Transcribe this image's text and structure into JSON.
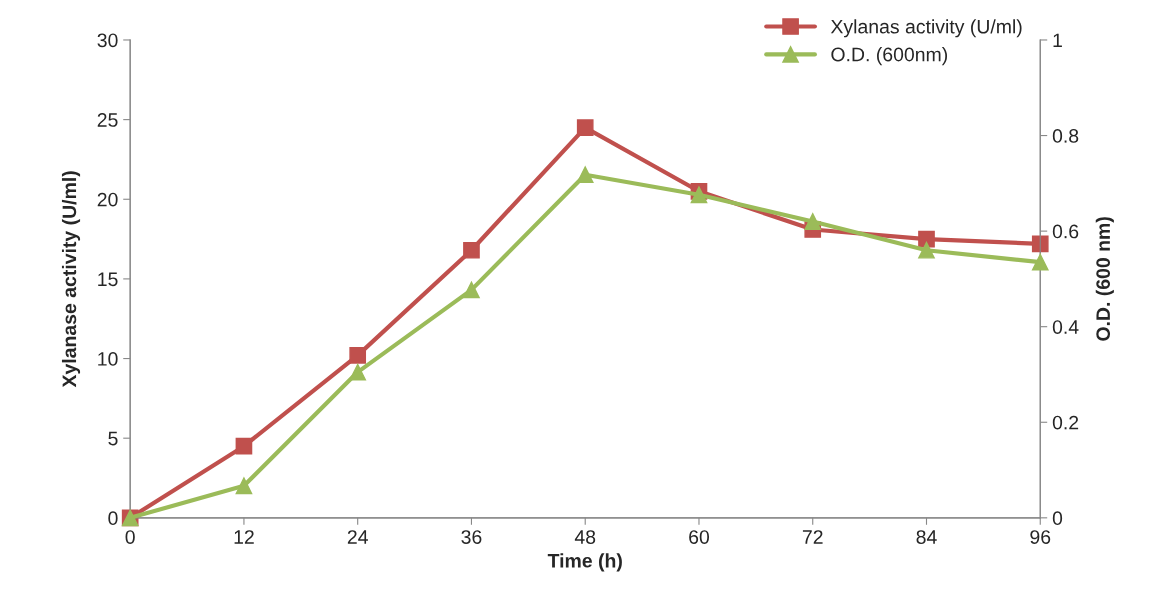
{
  "chart_data": {
    "type": "line",
    "xlabel": "Time (h)",
    "ylabel": "Xylanase activity (U/ml)",
    "y2label": "O.D. (600 nm)",
    "x": [
      0,
      12,
      24,
      36,
      48,
      60,
      72,
      84,
      96
    ],
    "xlim": [
      0,
      96
    ],
    "xticks": [
      0,
      12,
      24,
      36,
      48,
      60,
      72,
      84,
      96
    ],
    "ylim": [
      0,
      30
    ],
    "yticks": [
      0,
      5,
      10,
      15,
      20,
      25,
      30
    ],
    "y2lim": [
      0,
      1
    ],
    "y2ticks": [
      0,
      0.2,
      0.4,
      0.6,
      0.8,
      1
    ],
    "grid": false,
    "legend": "top right",
    "series": [
      {
        "name": "Xylanas activity (U/ml)",
        "color": "#c0504d",
        "marker": "square",
        "values": [
          0,
          4.5,
          10.2,
          16.8,
          24.5,
          20.5,
          18.1,
          17.5,
          17.2
        ]
      },
      {
        "name": "O.D. (600nm)",
        "color": "#9bbb59",
        "marker": "triangle",
        "axis": "y2",
        "values": [
          0,
          0.067,
          0.305,
          0.477,
          0.718,
          0.676,
          0.62,
          0.56,
          0.535
        ]
      }
    ]
  }
}
